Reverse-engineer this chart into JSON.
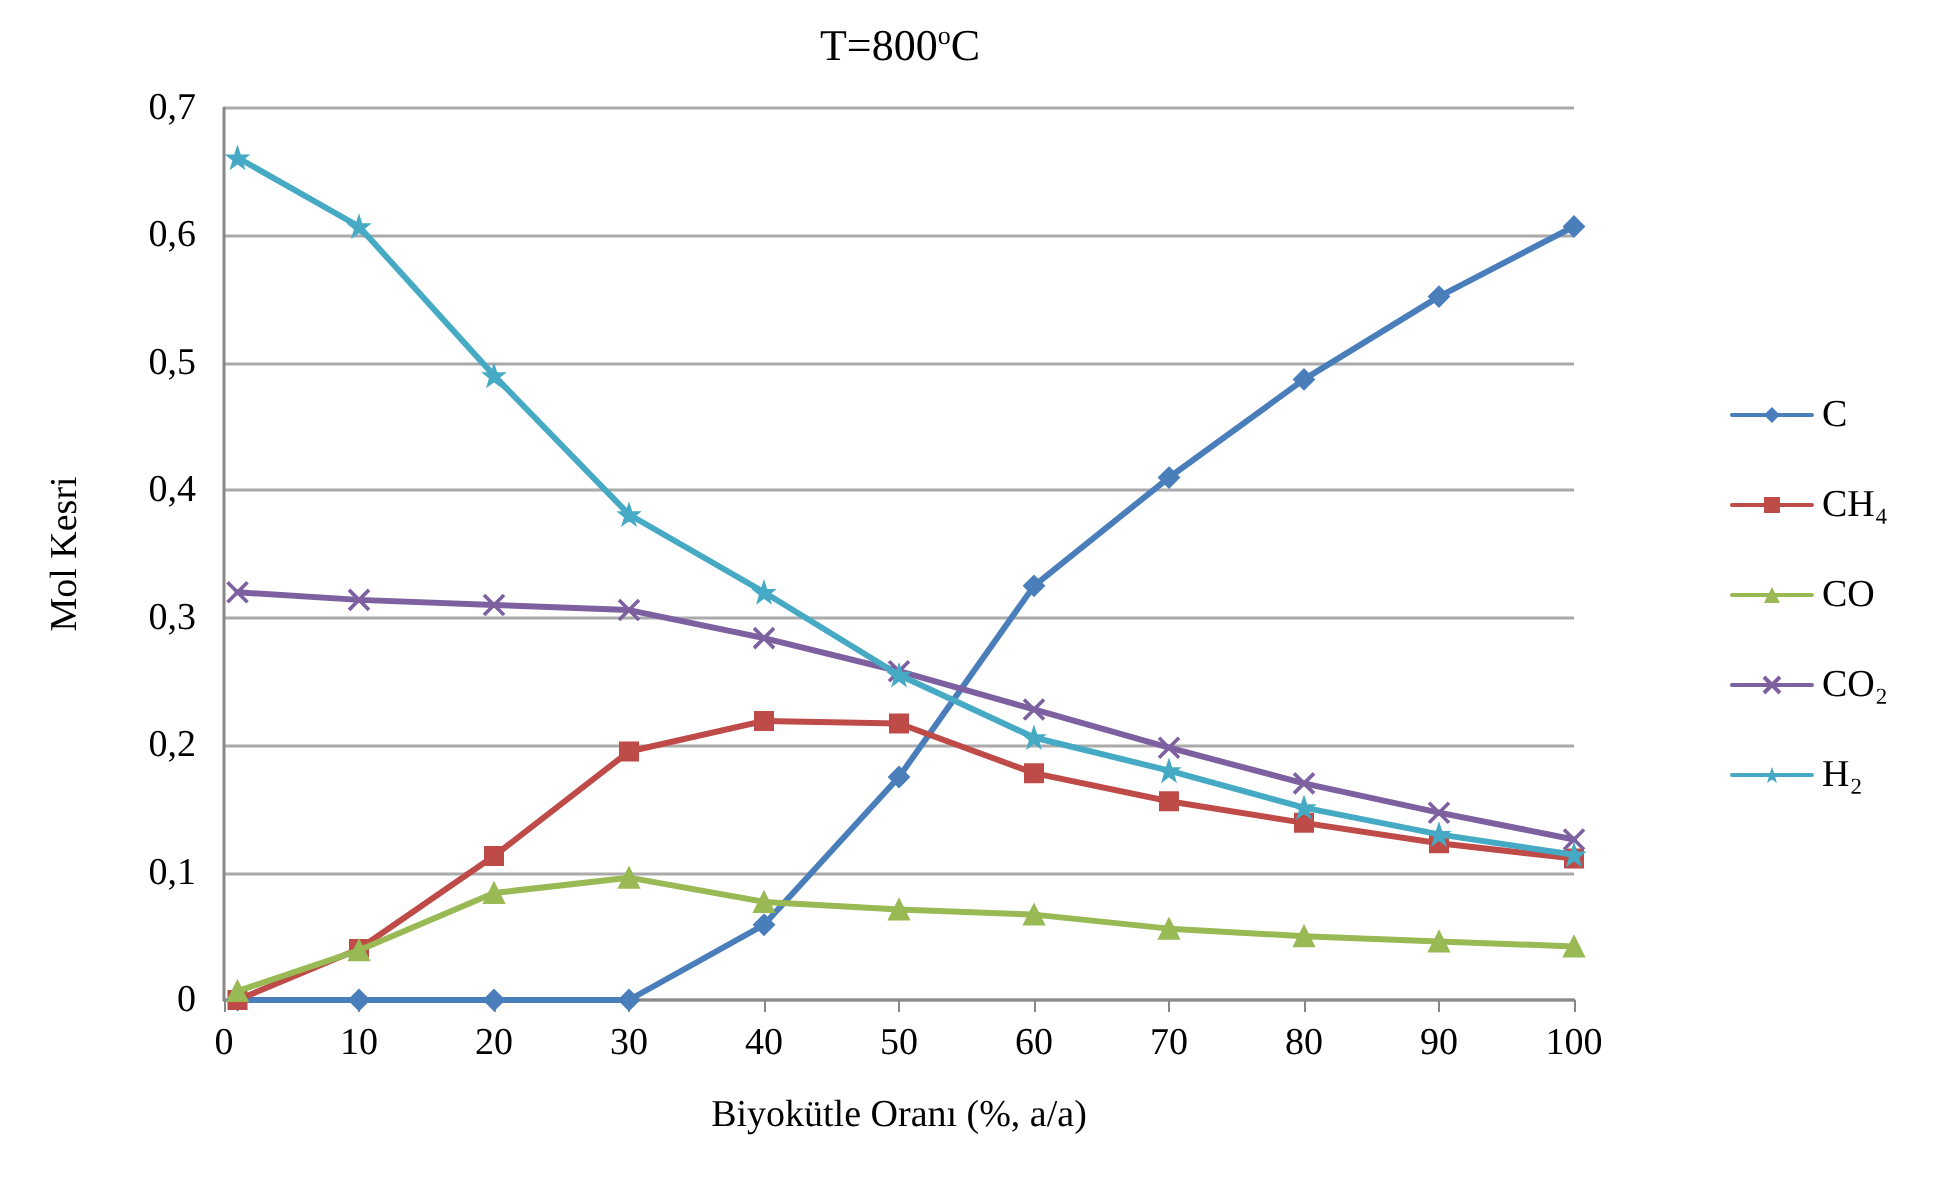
{
  "chart_data": {
    "type": "line",
    "title": "T=800$^{o}$C",
    "xlabel": "Biyokütle Oranı (%, a/a)",
    "ylabel": "Mol Kesri",
    "x": [
      1,
      10,
      20,
      30,
      40,
      50,
      60,
      70,
      80,
      90,
      100
    ],
    "series": [
      {
        "name": "C",
        "color": "#4a7ebb",
        "marker": "diamond",
        "values": [
          0,
          0,
          0,
          0,
          0.059,
          0.175,
          0.325,
          0.41,
          0.487,
          0.552,
          0.607
        ]
      },
      {
        "name": "CH₄",
        "color": "#be4b48",
        "marker": "square",
        "values": [
          0,
          0.04,
          0.113,
          0.195,
          0.219,
          0.217,
          0.178,
          0.156,
          0.139,
          0.123,
          0.111
        ]
      },
      {
        "name": "CO",
        "color": "#98b954",
        "marker": "triangle",
        "values": [
          0.007,
          0.039,
          0.084,
          0.096,
          0.077,
          0.071,
          0.067,
          0.056,
          0.05,
          0.046,
          0.042
        ]
      },
      {
        "name": "CO₂",
        "color": "#7d60a0",
        "marker": "cross",
        "values": [
          0.32,
          0.314,
          0.31,
          0.306,
          0.284,
          0.258,
          0.228,
          0.198,
          0.17,
          0.147,
          0.126
        ]
      },
      {
        "name": "H₂",
        "color": "#46aac5",
        "marker": "star",
        "values": [
          0.661,
          0.607,
          0.49,
          0.381,
          0.32,
          0.255,
          0.206,
          0.18,
          0.151,
          0.13,
          0.114
        ]
      }
    ],
    "xlim": [
      0,
      100
    ],
    "xticks": [
      0,
      10,
      20,
      30,
      40,
      50,
      60,
      70,
      80,
      90,
      100
    ],
    "ylim": [
      0,
      0.7
    ],
    "yticks": [
      {
        "value": 0,
        "label": "0"
      },
      {
        "value": 0.1,
        "label": "0,1"
      },
      {
        "value": 0.2,
        "label": "0,2"
      },
      {
        "value": 0.3,
        "label": "0,3"
      },
      {
        "value": 0.4,
        "label": "0,4"
      },
      {
        "value": 0.5,
        "label": "0,5"
      },
      {
        "value": 0.6,
        "label": "0,6"
      },
      {
        "value": 0.7,
        "label": "0,7"
      }
    ],
    "grid": "y",
    "legend": "right",
    "line_style": "solid"
  }
}
